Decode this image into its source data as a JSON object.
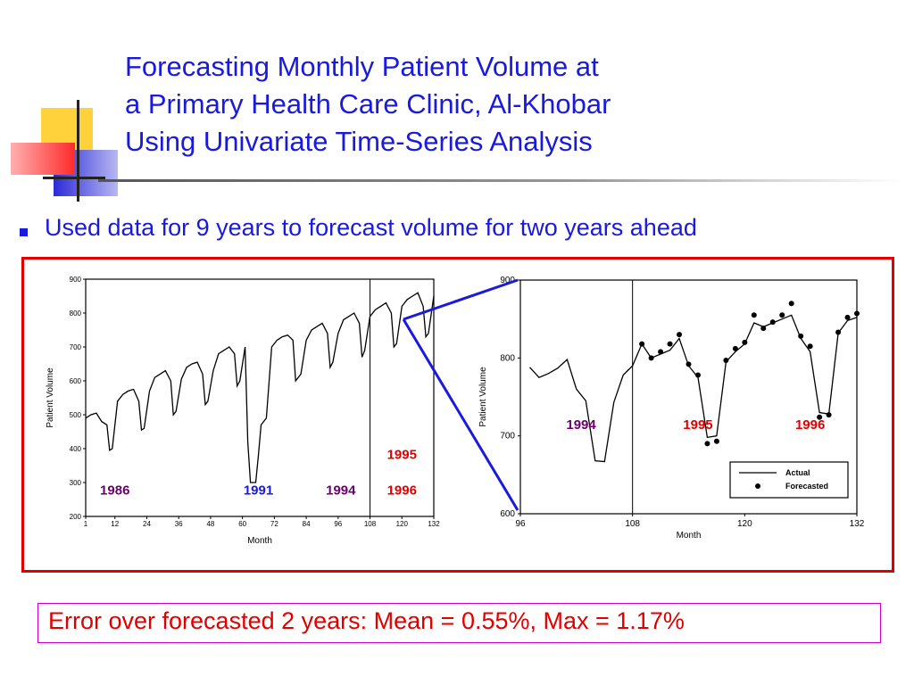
{
  "slide": {
    "title_lines": [
      "Forecasting Monthly Patient Volume at",
      "a Primary Health Care Clinic, Al-Khobar",
      "Using Univariate Time-Series Analysis"
    ],
    "bullet": "Used data for 9 years to forecast volume for two years ahead",
    "error_summary": "Error over forecasted 2 years: Mean = 0.55%, Max = 1.17%"
  },
  "colors": {
    "title": "#1a1adc",
    "frame": "#e00000",
    "purple_year": "#6b006b",
    "blue_year": "#1a1adc",
    "red_year": "#e00000",
    "zoom_line": "#1a1adc"
  },
  "chart_data": [
    {
      "type": "line",
      "xlabel": "Month",
      "ylabel": "Patient Volume",
      "xlim": [
        1,
        132
      ],
      "ylim": [
        200,
        900
      ],
      "x_ticks": [
        "1",
        "12",
        "24",
        "36",
        "48",
        "60",
        "72",
        "84",
        "96",
        "108",
        "120",
        "132"
      ],
      "y_ticks": [
        "200",
        "300",
        "400",
        "500",
        "600",
        "700",
        "800",
        "900"
      ],
      "divider_x": 108,
      "grid": false,
      "annotations": [
        {
          "text": "1986",
          "color": "purple_year",
          "at_x": 12,
          "at_y": 265
        },
        {
          "text": "1991",
          "color": "blue_year",
          "at_x": 66,
          "at_y": 265
        },
        {
          "text": "1994",
          "color": "purple_year",
          "at_x": 97,
          "at_y": 265
        },
        {
          "text": "1995",
          "color": "red_year",
          "at_x": 120,
          "at_y": 370
        },
        {
          "text": "1996",
          "color": "red_year",
          "at_x": 120,
          "at_y": 265
        }
      ],
      "series": [
        {
          "x": [
            1,
            3,
            5,
            7,
            9,
            10,
            11,
            13,
            15,
            17,
            19,
            21,
            22,
            23,
            25,
            27,
            29,
            31,
            33,
            34,
            35,
            37,
            39,
            41,
            43,
            45,
            46,
            47,
            49,
            51,
            53,
            55,
            57,
            58,
            59,
            61,
            62,
            63,
            65,
            66,
            67,
            69,
            71,
            73,
            75,
            77,
            79,
            80,
            81,
            82,
            84,
            86,
            88,
            90,
            92,
            93,
            94,
            96,
            98,
            100,
            102,
            104,
            105,
            106,
            108,
            110,
            112,
            114,
            116,
            117,
            118,
            120,
            122,
            124,
            126,
            128,
            129,
            130,
            132
          ],
          "values": [
            490,
            500,
            505,
            480,
            470,
            395,
            400,
            540,
            560,
            570,
            575,
            540,
            455,
            460,
            570,
            610,
            620,
            630,
            600,
            500,
            510,
            605,
            640,
            650,
            655,
            620,
            530,
            540,
            630,
            680,
            690,
            700,
            680,
            585,
            600,
            700,
            420,
            300,
            300,
            380,
            470,
            490,
            700,
            720,
            730,
            735,
            720,
            600,
            610,
            620,
            720,
            750,
            760,
            770,
            740,
            640,
            655,
            740,
            780,
            790,
            800,
            770,
            670,
            690,
            790,
            810,
            820,
            830,
            800,
            700,
            710,
            820,
            840,
            850,
            860,
            820,
            730,
            740,
            850
          ]
        }
      ]
    },
    {
      "type": "line",
      "xlabel": "Month",
      "ylabel": "Patient Volume",
      "xlim": [
        96,
        132
      ],
      "ylim": [
        600,
        900
      ],
      "x_ticks": [
        "96",
        "108",
        "120",
        "132"
      ],
      "y_ticks": [
        "600",
        "700",
        "800",
        "900"
      ],
      "divider_x": 108,
      "grid": false,
      "legend": {
        "position": "bottom-right",
        "entries": [
          "Actual",
          "Forecasted"
        ]
      },
      "annotations": [
        {
          "text": "1994",
          "color": "purple_year",
          "at_x": 102.5,
          "at_y": 709
        },
        {
          "text": "1995",
          "color": "red_year",
          "at_x": 115,
          "at_y": 709
        },
        {
          "text": "1996",
          "color": "red_year",
          "at_x": 127,
          "at_y": 709
        }
      ],
      "series": [
        {
          "name": "Actual",
          "values": [
            [
              97,
              788
            ],
            [
              98,
              775
            ],
            [
              99,
              780
            ],
            [
              100,
              787
            ],
            [
              101,
              798
            ],
            [
              102,
              760
            ],
            [
              103,
              745
            ],
            [
              104,
              668
            ],
            [
              105,
              667
            ],
            [
              106,
              743
            ],
            [
              107,
              778
            ],
            [
              108,
              790
            ],
            [
              109,
              818
            ],
            [
              110,
              800
            ],
            [
              111,
              805
            ],
            [
              112,
              810
            ],
            [
              113,
              825
            ],
            [
              114,
              790
            ],
            [
              115,
              775
            ],
            [
              116,
              698
            ],
            [
              117,
              700
            ],
            [
              118,
              795
            ],
            [
              119,
              808
            ],
            [
              120,
              818
            ],
            [
              121,
              845
            ],
            [
              122,
              840
            ],
            [
              123,
              845
            ],
            [
              124,
              850
            ],
            [
              125,
              855
            ],
            [
              126,
              825
            ],
            [
              127,
              808
            ],
            [
              128,
              730
            ],
            [
              129,
              728
            ],
            [
              130,
              832
            ],
            [
              131,
              848
            ],
            [
              132,
              852
            ]
          ]
        },
        {
          "name": "Forecasted",
          "values": [
            [
              109,
              818
            ],
            [
              110,
              800
            ],
            [
              111,
              808
            ],
            [
              112,
              818
            ],
            [
              113,
              830
            ],
            [
              114,
              792
            ],
            [
              115,
              778
            ],
            [
              116,
              690
            ],
            [
              117,
              693
            ],
            [
              118,
              797
            ],
            [
              119,
              812
            ],
            [
              120,
              820
            ],
            [
              121,
              855
            ],
            [
              122,
              838
            ],
            [
              123,
              846
            ],
            [
              124,
              855
            ],
            [
              125,
              870
            ],
            [
              126,
              828
            ],
            [
              127,
              815
            ],
            [
              128,
              724
            ],
            [
              129,
              727
            ],
            [
              130,
              833
            ],
            [
              131,
              852
            ],
            [
              132,
              857
            ]
          ]
        }
      ]
    }
  ]
}
